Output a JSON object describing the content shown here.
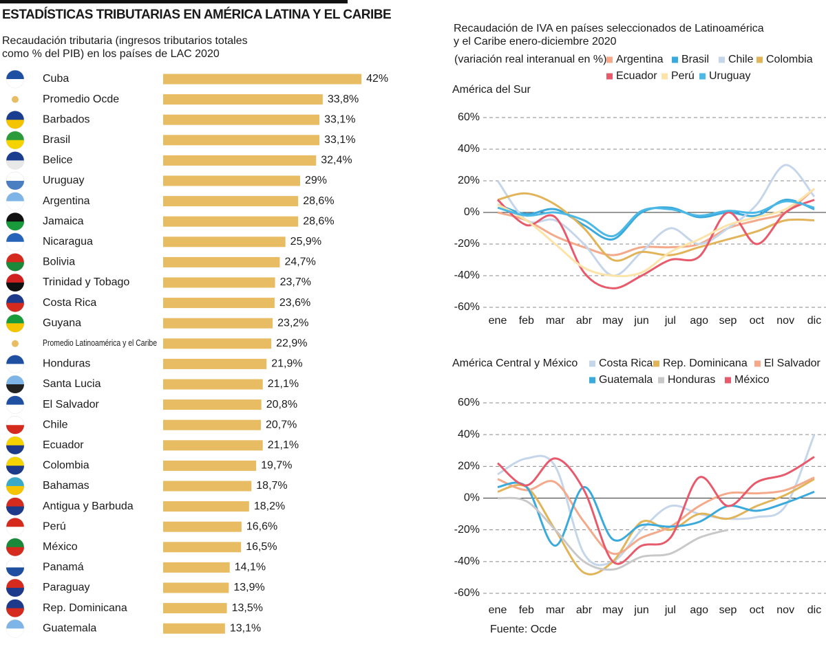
{
  "title": "ESTADÍSTICAS TRIBUTARIAS EN AMÉRICA LATINA Y EL CARIBE",
  "source": "Fuente: Ocde",
  "chart_data": [
    {
      "type": "hbar",
      "title": "Recaudación tributaria (ingresos tributarios totales como % del PIB) en los países de LAC 2020",
      "color": "#e8bc63",
      "categories": [
        "Cuba",
        "Promedio Ocde",
        "Barbados",
        "Brasil",
        "Belice",
        "Uruguay",
        "Argentina",
        "Jamaica",
        "Nicaragua",
        "Bolivia",
        "Trinidad y Tobago",
        "Costa Rica",
        "Guyana",
        "Promedio Latinoamérica y el Caribe",
        "Honduras",
        "Santa Lucia",
        "El Salvador",
        "Chile",
        "Ecuador",
        "Colombia",
        "Bahamas",
        "Antigua y Barbuda",
        "Perú",
        "México",
        "Panamá",
        "Paraguay",
        "Rep. Dominicana",
        "Guatemala"
      ],
      "values": [
        42,
        33.8,
        33.1,
        33.1,
        32.4,
        29,
        28.6,
        28.6,
        25.9,
        24.7,
        23.7,
        23.6,
        23.2,
        22.9,
        21.9,
        21.1,
        20.8,
        20.7,
        21.1,
        19.7,
        18.7,
        18.2,
        16.6,
        16.5,
        14.1,
        13.9,
        13.5,
        13.1
      ],
      "value_labels": [
        "42%",
        "33,8%",
        "33,1%",
        "33,1%",
        "32,4%",
        "29%",
        "28,6%",
        "28,6%",
        "25,9%",
        "24,7%",
        "23,7%",
        "23,6%",
        "23,2%",
        "22,9%",
        "21,9%",
        "21,1%",
        "20,8%",
        "20,7%",
        "21,1%",
        "19,7%",
        "18,7%",
        "18,2%",
        "16,6%",
        "16,5%",
        "14,1%",
        "13,9%",
        "13,5%",
        "13,1%"
      ]
    },
    {
      "type": "line",
      "title": "Recaudación de IVA en países seleccionados de Latinoamérica y el Caribe enero-diciembre 2020",
      "subtitle": "(variación real interanual en %)",
      "label": "América del Sur",
      "categories": [
        "ene",
        "feb",
        "mar",
        "abr",
        "may",
        "jun",
        "jul",
        "ago",
        "sep",
        "oct",
        "nov",
        "dic"
      ],
      "ylim": [
        -60,
        60
      ],
      "yticks": [
        {
          "value": 60,
          "label": "60%"
        },
        {
          "value": 40,
          "label": "40%"
        },
        {
          "value": 20,
          "label": "20%"
        },
        {
          "value": 0,
          "label": "0%"
        },
        {
          "value": -20,
          "label": "-20%"
        },
        {
          "value": -40,
          "label": "-40%"
        },
        {
          "value": -60,
          "label": "-60%"
        }
      ],
      "grid": true,
      "series": [
        {
          "name": "Argentina",
          "color": "#f4a98a",
          "values": [
            0,
            -5,
            -15,
            -22,
            -27,
            -22,
            -22,
            -20,
            -10,
            -5,
            0,
            15
          ]
        },
        {
          "name": "Brasil",
          "color": "#3aa9dc",
          "values": [
            5,
            -1,
            2,
            -8,
            -17,
            0,
            3,
            -3,
            0,
            -2,
            8,
            2
          ]
        },
        {
          "name": "Chile",
          "color": "#c5d5ea",
          "values": [
            20,
            -5,
            -5,
            -20,
            -40,
            -25,
            -10,
            -20,
            -10,
            5,
            30,
            10
          ]
        },
        {
          "name": "Colombia",
          "color": "#e2b45a",
          "values": [
            8,
            12,
            5,
            -10,
            -30,
            -25,
            -27,
            -22,
            -17,
            -12,
            -5,
            -5
          ]
        },
        {
          "name": "Ecuador",
          "color": "#e85a6b",
          "values": [
            8,
            -8,
            -3,
            -38,
            -48,
            -40,
            -30,
            -28,
            0,
            -20,
            0,
            8
          ]
        },
        {
          "name": "Perú",
          "color": "#fce3a8",
          "values": [
            5,
            -5,
            -20,
            -35,
            -40,
            -38,
            -25,
            -17,
            -8,
            -3,
            2,
            15
          ]
        },
        {
          "name": "Uruguay",
          "color": "#4bb8e6",
          "values": [
            3,
            -2,
            0,
            -5,
            -15,
            1,
            2,
            -2,
            1,
            0,
            7,
            3
          ]
        }
      ]
    },
    {
      "type": "line",
      "label": "América Central y México",
      "categories": [
        "ene",
        "feb",
        "mar",
        "abr",
        "may",
        "jun",
        "jul",
        "ago",
        "sep",
        "oct",
        "nov",
        "dic"
      ],
      "ylim": [
        -60,
        60
      ],
      "yticks": [
        {
          "value": 60,
          "label": "60%"
        },
        {
          "value": 40,
          "label": "40%"
        },
        {
          "value": 20,
          "label": "20%"
        },
        {
          "value": 0,
          "label": "0%"
        },
        {
          "value": -20,
          "label": "-20%"
        },
        {
          "value": -40,
          "label": "-40%"
        },
        {
          "value": -60,
          "label": "-60%"
        }
      ],
      "grid": true,
      "series": [
        {
          "name": "Costa Rica",
          "color": "#c5d5ea",
          "values": [
            15,
            25,
            20,
            -35,
            -40,
            -20,
            -5,
            -10,
            -13,
            -12,
            -5,
            40
          ]
        },
        {
          "name": "Rep. Dominicana",
          "color": "#e2b45a",
          "values": [
            4,
            7,
            -20,
            -47,
            -40,
            -15,
            -20,
            -10,
            -13,
            -5,
            2,
            12
          ]
        },
        {
          "name": "El Salvador",
          "color": "#f4a98a",
          "values": [
            12,
            5,
            10,
            -15,
            -35,
            -25,
            -18,
            -5,
            3,
            3,
            5,
            13
          ]
        },
        {
          "name": "Guatemala",
          "color": "#3aa9dc",
          "values": [
            7,
            7,
            -30,
            7,
            -26,
            -17,
            -18,
            -15,
            -5,
            -8,
            -3,
            4
          ]
        },
        {
          "name": "Honduras",
          "color": "#c8c8c8",
          "values": [
            0,
            -2,
            -20,
            -40,
            -45,
            -37,
            -35,
            -25,
            -20,
            null,
            null,
            null
          ]
        },
        {
          "name": "México",
          "color": "#e85a6b",
          "values": [
            22,
            8,
            25,
            5,
            -40,
            -30,
            -25,
            13,
            -5,
            10,
            15,
            26
          ]
        }
      ]
    }
  ]
}
